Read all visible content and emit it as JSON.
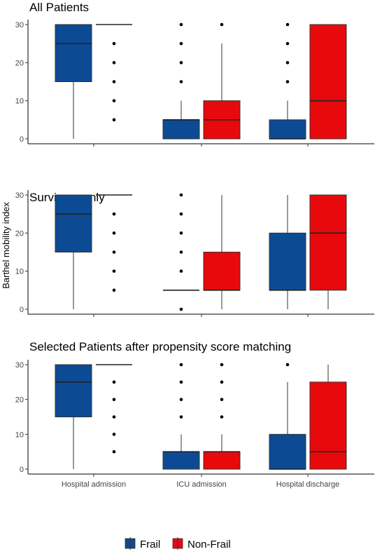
{
  "chart_data": {
    "type": "box",
    "ylabel": "Barthel mobility index",
    "categories": [
      "Hospital admission",
      "ICU admission",
      "Hospital discharge"
    ],
    "yticks": [
      0,
      10,
      20,
      30
    ],
    "ylim": [
      0,
      30
    ],
    "legend": {
      "position": "bottom",
      "items": [
        {
          "name": "Frail",
          "color": "#0d4a94"
        },
        {
          "name": "Non-Frail",
          "color": "#e8090d"
        }
      ]
    },
    "panels": [
      {
        "title": "All Patients",
        "groups": [
          {
            "category": "Hospital admission",
            "series": "Frail",
            "min": 0,
            "q1": 15,
            "median": 25,
            "q3": 30,
            "max": 30,
            "outliers": []
          },
          {
            "category": "Hospital admission",
            "series": "Non-Frail",
            "min": 30,
            "q1": 30,
            "median": 30,
            "q3": 30,
            "max": 30,
            "outliers": [
              5,
              10,
              15,
              20,
              25
            ]
          },
          {
            "category": "ICU admission",
            "series": "Frail",
            "min": 0,
            "q1": 0,
            "median": 5,
            "q3": 5,
            "max": 10,
            "outliers": [
              15,
              20,
              25,
              30
            ]
          },
          {
            "category": "ICU admission",
            "series": "Non-Frail",
            "min": 0,
            "q1": 0,
            "median": 5,
            "q3": 10,
            "max": 25,
            "outliers": [
              30
            ]
          },
          {
            "category": "Hospital discharge",
            "series": "Frail",
            "min": 0,
            "q1": 0,
            "median": 0,
            "q3": 5,
            "max": 10,
            "outliers": [
              15,
              20,
              25,
              30
            ]
          },
          {
            "category": "Hospital discharge",
            "series": "Non-Frail",
            "min": 0,
            "q1": 0,
            "median": 10,
            "q3": 30,
            "max": 30,
            "outliers": []
          }
        ]
      },
      {
        "title": "Survivors-only",
        "groups": [
          {
            "category": "Hospital admission",
            "series": "Frail",
            "min": 0,
            "q1": 15,
            "median": 25,
            "q3": 30,
            "max": 30,
            "outliers": []
          },
          {
            "category": "Hospital admission",
            "series": "Non-Frail",
            "min": 30,
            "q1": 30,
            "median": 30,
            "q3": 30,
            "max": 30,
            "outliers": [
              5,
              10,
              15,
              20,
              25
            ]
          },
          {
            "category": "ICU admission",
            "series": "Frail",
            "min": 5,
            "q1": 5,
            "median": 5,
            "q3": 5,
            "max": 5,
            "outliers": [
              0,
              10,
              15,
              20,
              25,
              30
            ]
          },
          {
            "category": "ICU admission",
            "series": "Non-Frail",
            "min": 0,
            "q1": 5,
            "median": 5,
            "q3": 15,
            "max": 30,
            "outliers": []
          },
          {
            "category": "Hospital discharge",
            "series": "Frail",
            "min": 0,
            "q1": 5,
            "median": 5,
            "q3": 20,
            "max": 30,
            "outliers": []
          },
          {
            "category": "Hospital discharge",
            "series": "Non-Frail",
            "min": 0,
            "q1": 5,
            "median": 20,
            "q3": 30,
            "max": 30,
            "outliers": []
          }
        ]
      },
      {
        "title": "Selected Patients after propensity score matching",
        "groups": [
          {
            "category": "Hospital admission",
            "series": "Frail",
            "min": 0,
            "q1": 15,
            "median": 25,
            "q3": 30,
            "max": 30,
            "outliers": []
          },
          {
            "category": "Hospital admission",
            "series": "Non-Frail",
            "min": 30,
            "q1": 30,
            "median": 30,
            "q3": 30,
            "max": 30,
            "outliers": [
              5,
              10,
              15,
              20,
              25
            ]
          },
          {
            "category": "ICU admission",
            "series": "Frail",
            "min": 0,
            "q1": 0,
            "median": 5,
            "q3": 5,
            "max": 10,
            "outliers": [
              15,
              20,
              25,
              30
            ]
          },
          {
            "category": "ICU admission",
            "series": "Non-Frail",
            "min": 0,
            "q1": 0,
            "median": 5,
            "q3": 5,
            "max": 10,
            "outliers": [
              15,
              20,
              25,
              30
            ]
          },
          {
            "category": "Hospital discharge",
            "series": "Frail",
            "min": 0,
            "q1": 0,
            "median": 0,
            "q3": 10,
            "max": 25,
            "outliers": [
              30
            ]
          },
          {
            "category": "Hospital discharge",
            "series": "Non-Frail",
            "min": 0,
            "q1": 0,
            "median": 5,
            "q3": 25,
            "max": 30,
            "outliers": []
          }
        ]
      }
    ]
  }
}
